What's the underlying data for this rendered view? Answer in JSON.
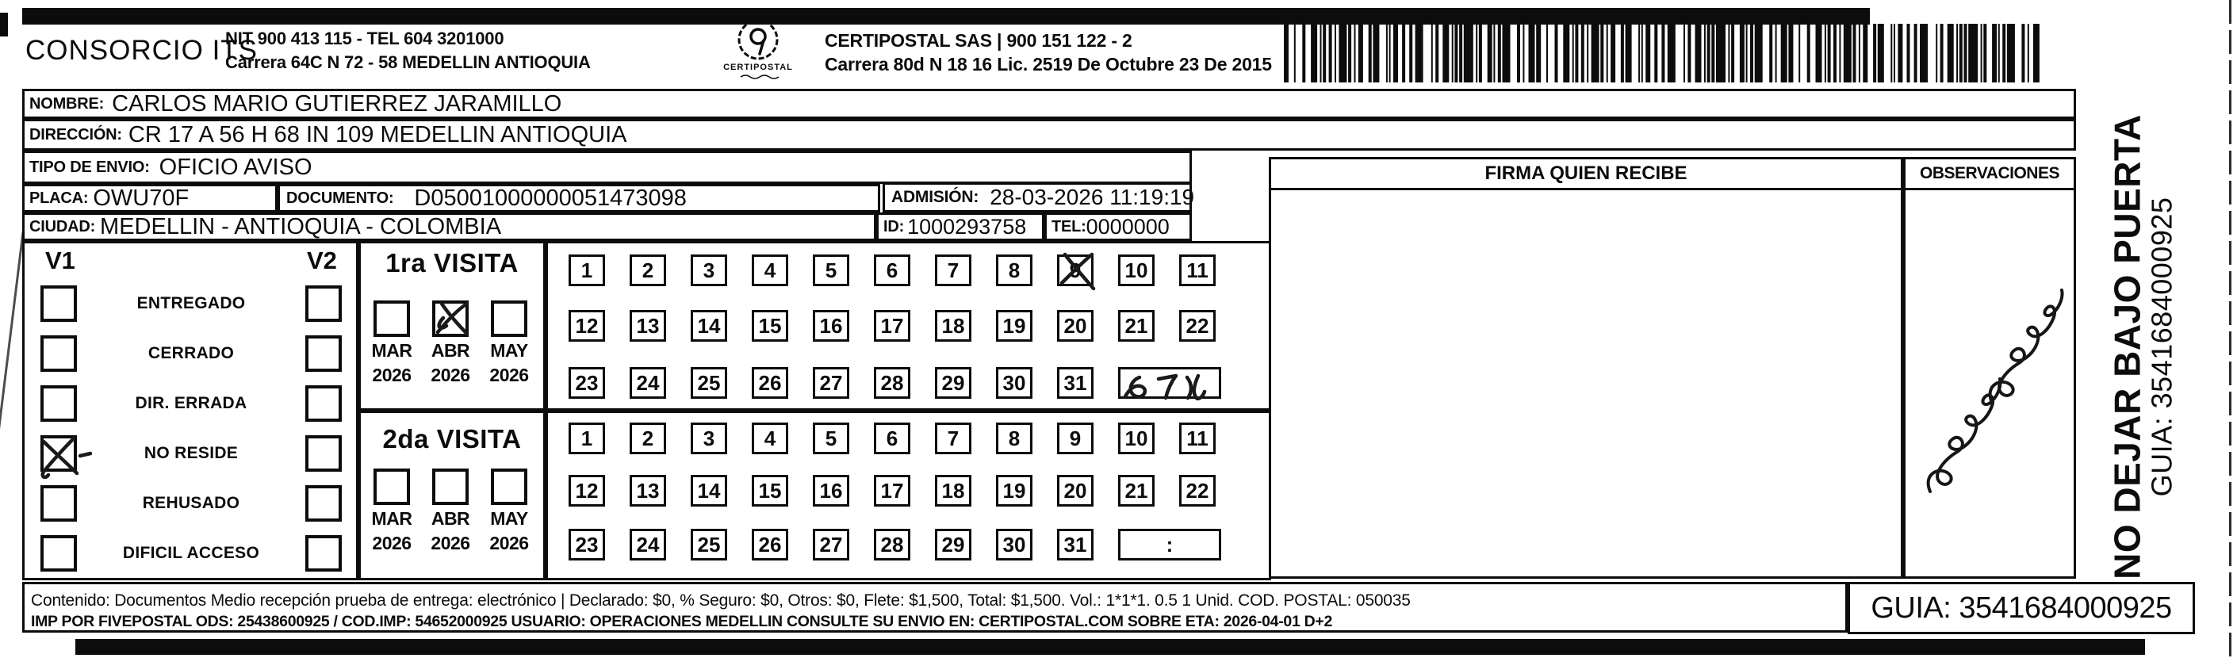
{
  "header": {
    "company_name": "CONSORCIO ITS",
    "company_info_line1": "NIT 900 413 115 - TEL 604 3201000",
    "company_info_line2": "Carrera 64C N 72 - 58 MEDELLIN ANTIOQUIA",
    "logo_caption": "CERTIPOSTAL",
    "postal_company_line1": "CERTIPOSTAL SAS | 900 151 122 - 2",
    "postal_company_line2": "Carrera 80d N 18 16  Lic. 2519 De Octubre 23 De 2015"
  },
  "shipment": {
    "nombre_label": "NOMBRE:",
    "nombre": "CARLOS MARIO GUTIERREZ JARAMILLO",
    "direccion_label": "DIRECCIÓN:",
    "direccion": "CR 17 A 56 H 68 IN 109 MEDELLIN ANTIOQUIA",
    "tipo_envio_label": "TIPO DE ENVIO:",
    "tipo_envio": "OFICIO AVISO",
    "placa_label": "PLACA:",
    "placa": "OWU70F",
    "documento_label": "DOCUMENTO:",
    "documento": "D05001000000051473098",
    "admision_label": "ADMISIÓN:",
    "admision": "28-03-2026 11:19:19",
    "ciudad_label": "CIUDAD:",
    "ciudad": "MEDELLIN - ANTIOQUIA - COLOMBIA",
    "id_label": "ID:",
    "id_value": "1000293758",
    "tel_label": "TEL:",
    "tel_value": "0000000"
  },
  "columns": {
    "firma_header": "FIRMA QUIEN RECIBE",
    "observaciones_header": "OBSERVACIONES",
    "observaciones_has_handwriting": true
  },
  "delivery_status": {
    "col1_header": "V1",
    "col2_header": "V2",
    "options": [
      {
        "label": "ENTREGADO",
        "v1": false,
        "v2": false
      },
      {
        "label": "CERRADO",
        "v1": false,
        "v2": false
      },
      {
        "label": "DIR. ERRADA",
        "v1": false,
        "v2": false
      },
      {
        "label": "NO RESIDE",
        "v1": true,
        "v2": false
      },
      {
        "label": "REHUSADO",
        "v1": false,
        "v2": false
      },
      {
        "label": "DIFICIL ACCESO",
        "v1": false,
        "v2": false
      }
    ]
  },
  "visits": {
    "day_rows": [
      [
        1,
        2,
        3,
        4,
        5,
        6,
        7,
        8,
        9,
        10,
        11
      ],
      [
        12,
        13,
        14,
        15,
        16,
        17,
        18,
        19,
        20,
        21,
        22
      ],
      [
        23,
        24,
        25,
        26,
        27,
        28,
        29,
        30,
        31
      ]
    ],
    "first": {
      "title": "1ra VISITA",
      "months": [
        {
          "month": "MAR",
          "year": "2026",
          "checked": false
        },
        {
          "month": "ABR",
          "year": "2026",
          "checked": true
        },
        {
          "month": "MAY",
          "year": "2026",
          "checked": false
        }
      ],
      "crossed_day": 9,
      "time_box_text": "",
      "time_box_handwritten": true
    },
    "second": {
      "title": "2da VISITA",
      "months": [
        {
          "month": "MAR",
          "year": "2026",
          "checked": false
        },
        {
          "month": "ABR",
          "year": "2026",
          "checked": false
        },
        {
          "month": "MAY",
          "year": "2026",
          "checked": false
        }
      ],
      "crossed_day": null,
      "time_box_text": ":",
      "time_box_handwritten": false
    }
  },
  "footer": {
    "content_line": "Contenido: Documentos Medio recepción prueba de entrega: electrónico | Declarado: $0, % Seguro: $0, Otros: $0, Flete: $1,500, Total: $1,500. Vol.: 1*1*1. 0.5  1 Unid. COD. POSTAL: 050035",
    "imp_line": "IMP POR FIVEPOSTAL ODS: 25438600925 / COD.IMP: 54652000925 USUARIO: OPERACIONES MEDELLIN CONSULTE SU ENVIO EN: CERTIPOSTAL.COM SOBRE ETA: 2026-04-01 D+2",
    "guia": "GUIA: 3541684000925"
  },
  "side_note": {
    "line1": "NO DEJAR BAJO PUERTA",
    "line2": "GUIA: 3541684000925"
  },
  "ink_color": "#0c0c0c"
}
